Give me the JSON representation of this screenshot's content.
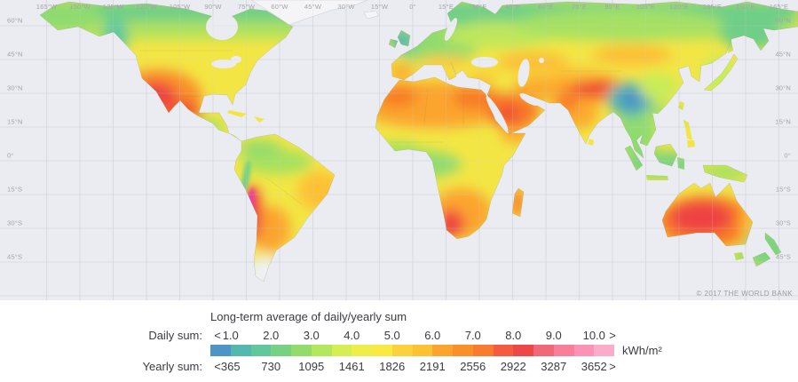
{
  "map": {
    "copyright": "© 2017 THE WORLD BANK",
    "longitude_labels": [
      "165°W",
      "150°W",
      "135°W",
      "120°W",
      "105°W",
      "90°W",
      "75°W",
      "60°W",
      "45°W",
      "30°W",
      "15°W",
      "0°",
      "15°E",
      "30°E",
      "45°E",
      "60°E",
      "75°E",
      "90°E",
      "105°E",
      "120°E",
      "135°E",
      "150°E",
      "165°E"
    ],
    "latitude_labels": [
      "60°N",
      "45°N",
      "30°N",
      "15°N",
      "0°",
      "15°S",
      "30°S",
      "45°S"
    ]
  },
  "legend": {
    "title": "Long-term average of daily/yearly sum",
    "daily_label": "Daily sum:",
    "yearly_label": "Yearly sum:",
    "unit": "kWh/m²",
    "daily_ticks": [
      "<",
      "1.0",
      "2.0",
      "3.0",
      "4.0",
      "5.0",
      "6.0",
      "7.0",
      "8.0",
      "9.0",
      "10.0",
      ">"
    ],
    "yearly_ticks": [
      "<",
      "365",
      "730",
      "1095",
      "1461",
      "1826",
      "2191",
      "2556",
      "2922",
      "3287",
      "3652",
      ">"
    ],
    "colors": [
      "#4e94c7",
      "#55b8ae",
      "#62c79b",
      "#76d282",
      "#93dc6c",
      "#b3e75e",
      "#d5ee52",
      "#eeee4a",
      "#f8e943",
      "#fbd23b",
      "#fcc134",
      "#fba42e",
      "#f9902a",
      "#f87b31",
      "#f55b40",
      "#ee4747",
      "#f16878",
      "#f87f9a",
      "#fa93b6",
      "#fbaccb"
    ],
    "ocean_color": "#ebecf1",
    "no_data_color": "#f5f5f8"
  }
}
